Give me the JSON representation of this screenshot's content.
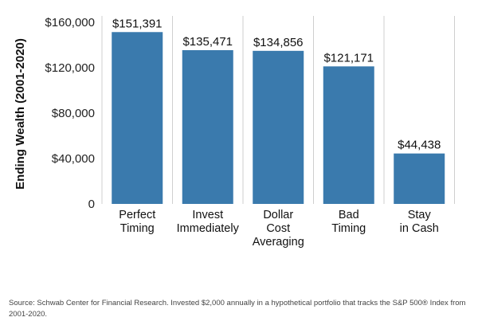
{
  "chart_data": {
    "type": "bar",
    "categories": [
      [
        "Perfect",
        "Timing"
      ],
      [
        "Invest",
        "Immediately"
      ],
      [
        "Dollar",
        "Cost",
        "Averaging"
      ],
      [
        "Bad",
        "Timing"
      ],
      [
        "Stay",
        "in Cash"
      ]
    ],
    "values": [
      151391,
      135471,
      134856,
      121171,
      44438
    ],
    "value_labels": [
      "$151,391",
      "$135,471",
      "$134,856",
      "$121,171",
      "$44,438"
    ],
    "ylabel": "Ending Wealth (2001-2020)",
    "ylim": [
      0,
      160000
    ],
    "yticks": [
      {
        "value": 0,
        "label": "0"
      },
      {
        "value": 40000,
        "label": "$40,000"
      },
      {
        "value": 80000,
        "label": "$80,000"
      },
      {
        "value": 120000,
        "label": "$120,000"
      },
      {
        "value": 160000,
        "label": "$160,000"
      }
    ],
    "bar_color": "#3a7aad",
    "grid": "vertical separators only",
    "legend": "none"
  },
  "source_note": "Source: Schwab Center for Financial Research. Invested $2,000 annually in a hypothetical portfolio that tracks the S&P 500® Index from 2001-2020."
}
